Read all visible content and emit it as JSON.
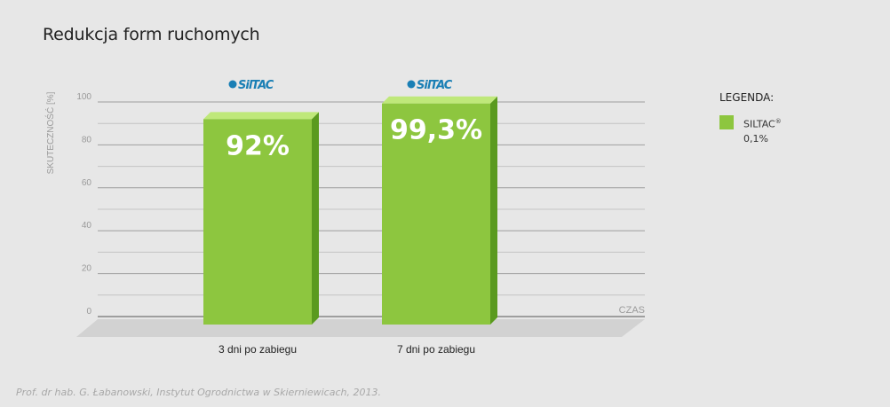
{
  "title": "Redukcja form ruchomych",
  "legend": {
    "heading": "LEGENDA:",
    "brand": "SILTAC",
    "trademark": "®",
    "concentration": "0,1%",
    "color": "#8dc63f"
  },
  "footer": "Prof. dr hab. G. Łabanowski, Instytut Ogrodnictwa w Skierniewicach, 2013.",
  "logo_text": "SilTAC",
  "chart_data": {
    "type": "bar",
    "title": "Redukcja form ruchomych",
    "ylabel": "SKUTECZNOŚĆ [%]",
    "xlabel": "CZAS",
    "ylim": [
      0,
      100
    ],
    "yticks": [
      0,
      20,
      40,
      60,
      80,
      100
    ],
    "categories": [
      "3 dni po zabiegu",
      "7 dni po zabiegu"
    ],
    "series": [
      {
        "name": "SILTAC® 0,1%",
        "values": [
          92,
          99.3
        ],
        "labels": [
          "92%",
          "99,3%"
        ],
        "color": "#8dc63f"
      }
    ],
    "grid": true,
    "legend_position": "right"
  }
}
